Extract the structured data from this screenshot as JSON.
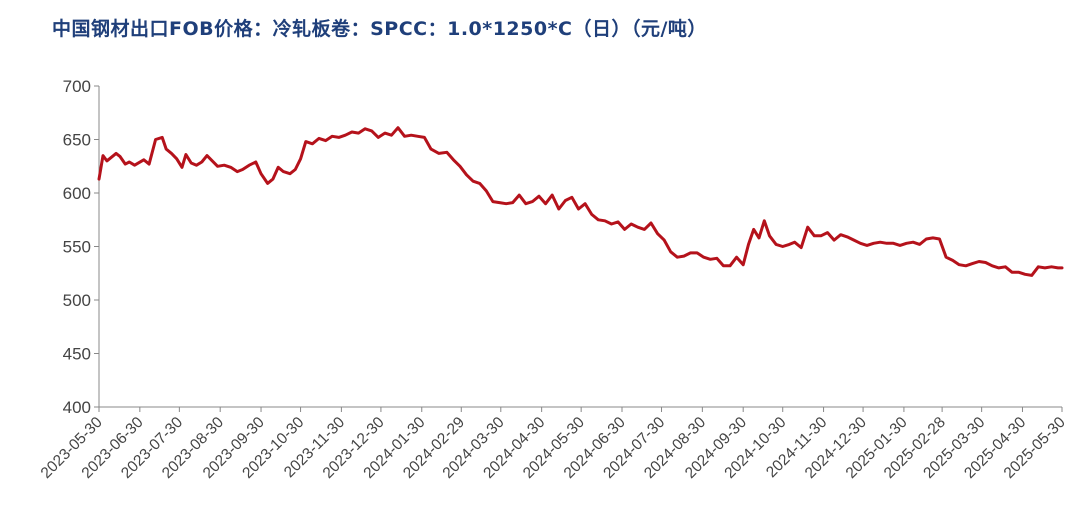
{
  "chart_data": {
    "type": "line",
    "title": "中国钢材出口FOB价格：冷轧板卷：SPCC：1.0*1250*C（日）（元/吨）",
    "xlabel": "",
    "ylabel": "",
    "ylim": [
      400,
      700
    ],
    "yticks": [
      400,
      450,
      500,
      550,
      600,
      650,
      700
    ],
    "xlim": [
      "2023-05-30",
      "2025-05-30"
    ],
    "xticks": [
      "2023-05-30",
      "2023-06-30",
      "2023-07-30",
      "2023-08-30",
      "2023-09-30",
      "2023-10-30",
      "2023-11-30",
      "2023-12-30",
      "2024-01-30",
      "2024-02-29",
      "2024-03-30",
      "2024-04-30",
      "2024-05-30",
      "2024-06-30",
      "2024-07-30",
      "2024-08-30",
      "2024-09-30",
      "2024-10-30",
      "2024-11-30",
      "2024-12-30",
      "2025-01-30",
      "2025-02-28",
      "2025-03-30",
      "2025-04-30",
      "2025-05-30"
    ],
    "grid": false,
    "line_color": "#b5121b",
    "series": [
      {
        "x": [
          "2023-05-30",
          "2023-06-02",
          "2023-06-05",
          "2023-06-12",
          "2023-06-15",
          "2023-06-19",
          "2023-06-22",
          "2023-06-26",
          "2023-07-03",
          "2023-07-07",
          "2023-07-12",
          "2023-07-17",
          "2023-07-20",
          "2023-07-24",
          "2023-07-28",
          "2023-08-01",
          "2023-08-04",
          "2023-08-08",
          "2023-08-12",
          "2023-08-16",
          "2023-08-20",
          "2023-08-24",
          "2023-08-28",
          "2023-09-02",
          "2023-09-07",
          "2023-09-12",
          "2023-09-16",
          "2023-09-21",
          "2023-09-26",
          "2023-09-30",
          "2023-10-05",
          "2023-10-09",
          "2023-10-13",
          "2023-10-17",
          "2023-10-22",
          "2023-10-26",
          "2023-10-30",
          "2023-11-03",
          "2023-11-08",
          "2023-11-13",
          "2023-11-18",
          "2023-11-23",
          "2023-11-28",
          "2023-12-03",
          "2023-12-08",
          "2023-12-13",
          "2023-12-18",
          "2023-12-23",
          "2023-12-28",
          "2024-01-02",
          "2024-01-07",
          "2024-01-12",
          "2024-01-17",
          "2024-01-22",
          "2024-01-27",
          "2024-02-01",
          "2024-02-06",
          "2024-02-12",
          "2024-02-18",
          "2024-02-23",
          "2024-02-28",
          "2024-03-04",
          "2024-03-09",
          "2024-03-14",
          "2024-03-19",
          "2024-03-24",
          "2024-03-29",
          "2024-04-03",
          "2024-04-08",
          "2024-04-13",
          "2024-04-18",
          "2024-04-23",
          "2024-04-28",
          "2024-05-03",
          "2024-05-08",
          "2024-05-13",
          "2024-05-18",
          "2024-05-23",
          "2024-05-28",
          "2024-06-02",
          "2024-06-07",
          "2024-06-12",
          "2024-06-17",
          "2024-06-22",
          "2024-06-27",
          "2024-07-02",
          "2024-07-07",
          "2024-07-12",
          "2024-07-17",
          "2024-07-22",
          "2024-07-27",
          "2024-08-01",
          "2024-08-06",
          "2024-08-11",
          "2024-08-16",
          "2024-08-21",
          "2024-08-26",
          "2024-08-31",
          "2024-09-05",
          "2024-09-10",
          "2024-09-15",
          "2024-09-20",
          "2024-09-25",
          "2024-09-30",
          "2024-10-04",
          "2024-10-08",
          "2024-10-12",
          "2024-10-16",
          "2024-10-20",
          "2024-10-25",
          "2024-10-30",
          "2024-11-04",
          "2024-11-08",
          "2024-11-13",
          "2024-11-18",
          "2024-11-23",
          "2024-11-28",
          "2024-12-03",
          "2024-12-08",
          "2024-12-13",
          "2024-12-18",
          "2024-12-23",
          "2024-12-28",
          "2025-01-02",
          "2025-01-07",
          "2025-01-12",
          "2025-01-17",
          "2025-01-22",
          "2025-01-27",
          "2025-02-01",
          "2025-02-06",
          "2025-02-11",
          "2025-02-16",
          "2025-02-21",
          "2025-02-26",
          "2025-03-03",
          "2025-03-08",
          "2025-03-13",
          "2025-03-18",
          "2025-03-23",
          "2025-03-28",
          "2025-04-02",
          "2025-04-07",
          "2025-04-12",
          "2025-04-17",
          "2025-04-22",
          "2025-04-27",
          "2025-05-02",
          "2025-05-07",
          "2025-05-12",
          "2025-05-17",
          "2025-05-22",
          "2025-05-27",
          "2025-05-30"
        ],
        "y": [
          613,
          635,
          630,
          637,
          634,
          627,
          629,
          626,
          631,
          627,
          650,
          652,
          641,
          637,
          632,
          624,
          636,
          628,
          626,
          629,
          635,
          630,
          625,
          626,
          624,
          620,
          622,
          626,
          629,
          618,
          609,
          613,
          624,
          620,
          618,
          622,
          632,
          648,
          646,
          651,
          649,
          653,
          652,
          654,
          657,
          656,
          660,
          658,
          652,
          656,
          654,
          661,
          653,
          654,
          653,
          652,
          641,
          637,
          638,
          631,
          625,
          617,
          611,
          609,
          602,
          592,
          591,
          590,
          591,
          598,
          590,
          592,
          597,
          590,
          598,
          585,
          593,
          596,
          585,
          590,
          580,
          575,
          574,
          571,
          573,
          566,
          571,
          568,
          566,
          572,
          562,
          556,
          545,
          540,
          541,
          544,
          544,
          540,
          538,
          539,
          532,
          532,
          540,
          533,
          552,
          566,
          558,
          574,
          560,
          552,
          550,
          552,
          554,
          549,
          568,
          560,
          560,
          563,
          556,
          561,
          559,
          556,
          553,
          551,
          553,
          554,
          553,
          553,
          551,
          553,
          554,
          552,
          557,
          558,
          557,
          540,
          537,
          533,
          532,
          534,
          536,
          535,
          532,
          530,
          531,
          526,
          526,
          524,
          523,
          531,
          530,
          531,
          530,
          530
        ]
      }
    ]
  }
}
